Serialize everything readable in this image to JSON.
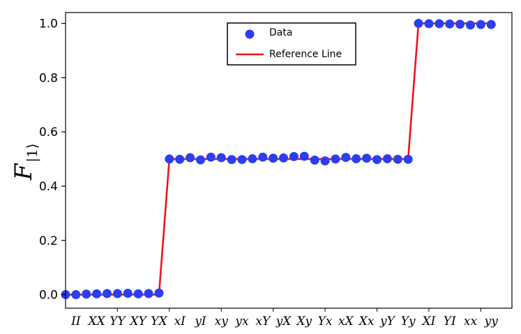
{
  "chart_data": {
    "type": "scatter",
    "ylabel": {
      "main": "F",
      "sub": "|1⟩"
    },
    "ylim": [
      -0.05,
      1.04
    ],
    "yticks": [
      0.0,
      0.2,
      0.4,
      0.6,
      0.8,
      1.0
    ],
    "ytick_labels": [
      "0.0",
      "0.2",
      "0.4",
      "0.6",
      "0.8",
      "1.0"
    ],
    "xtick_labels": [
      "II",
      "XX",
      "YY",
      "XY",
      "YX",
      "xI",
      "yI",
      "xy",
      "yx",
      "xY",
      "yX",
      "Xy",
      "Yx",
      "xX",
      "Xx",
      "yY",
      "Yy",
      "XI",
      "YI",
      "xx",
      "yy"
    ],
    "xtick_positions": [
      1,
      3,
      5,
      7,
      9,
      11,
      13,
      15,
      17,
      19,
      21,
      23,
      25,
      27,
      29,
      31,
      33,
      35,
      37,
      39,
      41
    ],
    "xlim": [
      0,
      43
    ],
    "series": [
      {
        "name": "Data",
        "kind": "scatter",
        "color": "#2a3ff0",
        "x": [
          0,
          1,
          2,
          3,
          4,
          5,
          6,
          7,
          8,
          9,
          10,
          11,
          12,
          13,
          14,
          15,
          16,
          17,
          18,
          19,
          20,
          21,
          22,
          23,
          24,
          25,
          26,
          27,
          28,
          29,
          30,
          31,
          32,
          33,
          34,
          35,
          36,
          37,
          38,
          39,
          40,
          41
        ],
        "y": [
          0.0,
          0.0,
          0.002,
          0.003,
          0.004,
          0.004,
          0.005,
          0.003,
          0.004,
          0.006,
          0.5,
          0.499,
          0.505,
          0.497,
          0.507,
          0.505,
          0.498,
          0.498,
          0.501,
          0.507,
          0.503,
          0.504,
          0.509,
          0.51,
          0.496,
          0.493,
          0.5,
          0.506,
          0.501,
          0.503,
          0.498,
          0.501,
          0.499,
          0.499,
          1.0,
          0.999,
          0.999,
          0.998,
          0.997,
          0.994,
          0.996,
          0.996
        ]
      },
      {
        "name": "Reference Line",
        "kind": "line",
        "color": "#e8141c",
        "x": [
          0,
          9,
          10,
          33,
          34,
          41
        ],
        "y": [
          0.0,
          0.0,
          0.5,
          0.5,
          1.0,
          1.0
        ]
      }
    ],
    "legend": {
      "position": "top-center",
      "entries": [
        "Data",
        "Reference Line"
      ]
    },
    "grid": false
  }
}
